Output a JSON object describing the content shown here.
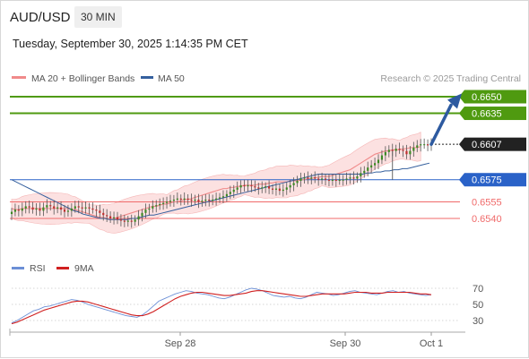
{
  "header": {
    "symbol": "AUD/USD",
    "timeframe": "30 MIN",
    "datetime": "Tuesday, September 30, 2025 1:14:35 PM CET"
  },
  "legend": {
    "ma_label": "MA 20 + Bollinger Bands",
    "ma50_label": "MA 50",
    "attribution": "Research © 2025 Trading Central",
    "rsi_label": "RSI",
    "ma9_label": "9MA"
  },
  "colors": {
    "ma20": "#f08a8a",
    "ma50": "#35609e",
    "resistance": "#4f9a10",
    "support": "#f06a6a",
    "pivot": "#2a62c8",
    "current": "#222222",
    "arrow": "#2d5aa0",
    "candle_up": "#3b8a23",
    "candle_down": "#c03030",
    "rsi": "#6b8fd6",
    "ma9": "#d02020"
  },
  "chart_data": [
    {
      "type": "candlestick",
      "title": "",
      "x_ticks": [
        "Sep 28",
        "Sep 30",
        "Oct 1"
      ],
      "price_scale": {
        "min": 0.6518,
        "max": 0.6666
      },
      "levels": [
        {
          "value": 0.665,
          "label": "0.6650",
          "kind": "resistance"
        },
        {
          "value": 0.6635,
          "label": "0.6635",
          "kind": "resistance"
        },
        {
          "value": 0.6607,
          "label": "0.6607",
          "kind": "current"
        },
        {
          "value": 0.6575,
          "label": "0.6575",
          "kind": "pivot"
        },
        {
          "value": 0.6555,
          "label": "0.6555",
          "kind": "support"
        },
        {
          "value": 0.654,
          "label": "0.6540",
          "kind": "support"
        }
      ],
      "close": [
        0.6546,
        0.6548,
        0.6547,
        0.6549,
        0.6551,
        0.655,
        0.6548,
        0.6549,
        0.6547,
        0.655,
        0.6552,
        0.6551,
        0.6549,
        0.655,
        0.6548,
        0.6546,
        0.6547,
        0.6549,
        0.6551,
        0.655,
        0.6549,
        0.655,
        0.6549,
        0.6548,
        0.6547,
        0.6545,
        0.6543,
        0.6542,
        0.654,
        0.6541,
        0.6539,
        0.6538,
        0.6537,
        0.6538,
        0.6537,
        0.6539,
        0.6542,
        0.6545,
        0.6548,
        0.6549,
        0.6551,
        0.6552,
        0.6553,
        0.6554,
        0.6555,
        0.6556,
        0.6557,
        0.6558,
        0.6557,
        0.6558,
        0.6557,
        0.6556,
        0.6557,
        0.6555,
        0.6556,
        0.6557,
        0.6556,
        0.6557,
        0.6558,
        0.6559,
        0.656,
        0.6562,
        0.6564,
        0.6566,
        0.6568,
        0.657,
        0.6569,
        0.657,
        0.6569,
        0.6568,
        0.6567,
        0.6568,
        0.6569,
        0.6567,
        0.6566,
        0.6567,
        0.6565,
        0.6566,
        0.6568,
        0.657,
        0.6572,
        0.6574,
        0.6576,
        0.6577,
        0.6576,
        0.6577,
        0.6576,
        0.6575,
        0.6576,
        0.6575,
        0.6574,
        0.6575,
        0.6574,
        0.6575,
        0.6575,
        0.6576,
        0.6577,
        0.6576,
        0.6578,
        0.6581,
        0.6583,
        0.6586,
        0.6588,
        0.659,
        0.6593,
        0.6597,
        0.66,
        0.6602,
        0.6601,
        0.6603,
        0.6602,
        0.6601,
        0.6598,
        0.6601,
        0.6604,
        0.6606,
        0.6607,
        0.6607,
        0.6606,
        0.6607
      ],
      "ma20": [
        0.6549,
        0.6548,
        0.6548,
        0.6549,
        0.6549,
        0.6549,
        0.6549,
        0.6549,
        0.6549,
        0.6549,
        0.6549,
        0.6549,
        0.6549,
        0.6549,
        0.6549,
        0.6549,
        0.6549,
        0.6548,
        0.6548,
        0.6547,
        0.6546,
        0.6545,
        0.6544,
        0.6543,
        0.6542,
        0.6541,
        0.6541,
        0.654,
        0.654,
        0.654,
        0.6541,
        0.6542,
        0.6543,
        0.6544,
        0.6545,
        0.6546,
        0.6547,
        0.6548,
        0.6549,
        0.655,
        0.6551,
        0.6551,
        0.6552,
        0.6553,
        0.6553,
        0.6554,
        0.6555,
        0.6555,
        0.6556,
        0.6557,
        0.6557,
        0.6558,
        0.6559,
        0.656,
        0.6561,
        0.6562,
        0.6563,
        0.6564,
        0.6565,
        0.6566,
        0.6567,
        0.6567,
        0.6568,
        0.6568,
        0.6569,
        0.6569,
        0.657,
        0.657,
        0.657,
        0.657,
        0.6571,
        0.6571,
        0.6571,
        0.6572,
        0.6572,
        0.6573,
        0.6573,
        0.6573,
        0.6573,
        0.6574,
        0.6574,
        0.6574,
        0.6575,
        0.6575,
        0.6576,
        0.6576,
        0.6577,
        0.6577,
        0.6578,
        0.6578,
        0.6578,
        0.6579,
        0.658,
        0.6581,
        0.6582,
        0.6583,
        0.6584,
        0.6586,
        0.6588,
        0.659,
        0.6592,
        0.6594,
        0.6596,
        0.6598,
        0.6599,
        0.66,
        0.6601,
        0.6601,
        0.6602,
        0.6602,
        0.6602,
        0.6603,
        0.6603,
        0.6604,
        0.6604,
        0.6604,
        0.6605
      ],
      "ma50": [
        0.6575,
        0.6573,
        0.6571,
        0.6569,
        0.6567,
        0.6565,
        0.6563,
        0.6561,
        0.6559,
        0.6557,
        0.6555,
        0.6553,
        0.6551,
        0.6549,
        0.6547,
        0.6546,
        0.6544,
        0.6543,
        0.6542,
        0.6541,
        0.654,
        0.654,
        0.6539,
        0.6539,
        0.6539,
        0.6539,
        0.6539,
        0.654,
        0.654,
        0.6541,
        0.6542,
        0.6543,
        0.6543,
        0.6544,
        0.6545,
        0.6546,
        0.6547,
        0.6548,
        0.6549,
        0.655,
        0.6551,
        0.6552,
        0.6553,
        0.6554,
        0.6555,
        0.6556,
        0.6557,
        0.6558,
        0.6559,
        0.656,
        0.6561,
        0.6562,
        0.6563,
        0.6564,
        0.6565,
        0.6566,
        0.6567,
        0.6568,
        0.6569,
        0.657,
        0.6571,
        0.6572,
        0.6573,
        0.6574,
        0.6575,
        0.6576,
        0.6577,
        0.6578,
        0.6579,
        0.658,
        0.658,
        0.658,
        0.658,
        0.658,
        0.658,
        0.658,
        0.658,
        0.658,
        0.658,
        0.658,
        0.6581,
        0.6581,
        0.6582,
        0.6582,
        0.6583,
        0.6583,
        0.6584,
        0.6584,
        0.6585,
        0.6585,
        0.6586,
        0.6587,
        0.6588,
        0.6589,
        0.659
      ],
      "band_width": 0.0012
    },
    {
      "type": "line",
      "title": "",
      "y_ticks": [
        70,
        50,
        30
      ],
      "ylim": [
        20,
        80
      ],
      "series": [
        {
          "name": "RSI",
          "values": [
            27,
            30,
            34,
            38,
            42,
            44,
            47,
            48,
            50,
            52,
            54,
            56,
            55,
            53,
            50,
            48,
            46,
            44,
            42,
            40,
            38,
            36,
            35,
            34,
            37,
            42,
            48,
            54,
            57,
            60,
            63,
            65,
            67,
            66,
            64,
            63,
            62,
            60,
            58,
            57,
            59,
            62,
            65,
            68,
            70,
            69,
            67,
            64,
            61,
            60,
            59,
            60,
            58,
            57,
            59,
            62,
            65,
            64,
            63,
            61,
            62,
            64,
            66,
            67,
            65,
            64,
            63,
            62,
            64,
            66,
            67,
            65,
            66,
            64,
            63,
            62,
            61,
            62
          ]
        },
        {
          "name": "9MA",
          "values": [
            26,
            28,
            31,
            34,
            37,
            40,
            43,
            45,
            47,
            49,
            51,
            53,
            54,
            54,
            53,
            51,
            49,
            47,
            45,
            43,
            41,
            39,
            37,
            36,
            36,
            38,
            41,
            45,
            49,
            53,
            57,
            60,
            62,
            64,
            65,
            65,
            64,
            63,
            62,
            61,
            61,
            62,
            63,
            64,
            66,
            67,
            67,
            66,
            65,
            64,
            63,
            62,
            61,
            60,
            60,
            61,
            62,
            63,
            63,
            63,
            63,
            63,
            64,
            65,
            65,
            65,
            64,
            64,
            64,
            65,
            65,
            65,
            65,
            65,
            64,
            63,
            63,
            62
          ]
        }
      ]
    }
  ]
}
